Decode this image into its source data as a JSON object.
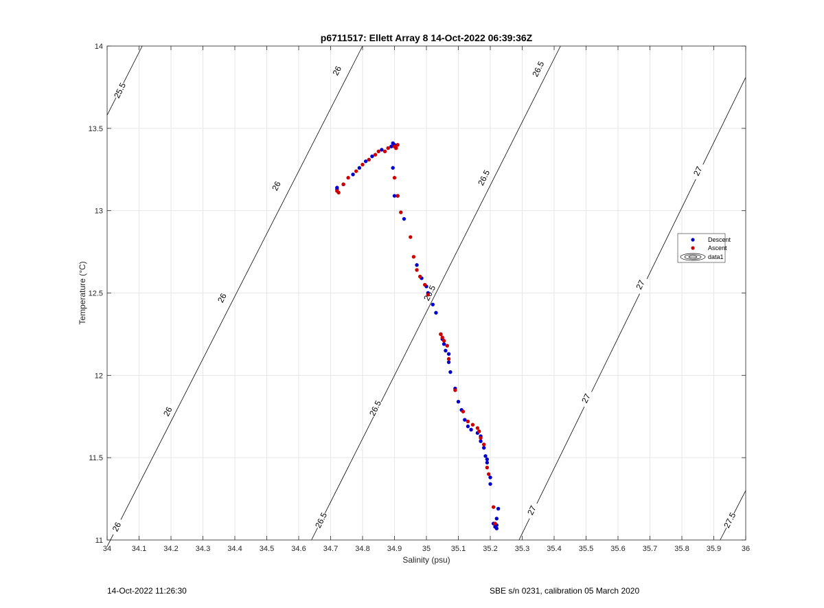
{
  "chart_data": {
    "type": "scatter",
    "title": "p6711517: Ellett Array 8 14-Oct-2022 06:39:36Z",
    "xlabel": "Salinity (psu)",
    "ylabel": "Temperature (°C)",
    "xlim": [
      34,
      36
    ],
    "ylim": [
      11,
      14
    ],
    "xticks": [
      34,
      34.1,
      34.2,
      34.3,
      34.4,
      34.5,
      34.6,
      34.7,
      34.8,
      34.9,
      35,
      35.1,
      35.2,
      35.3,
      35.4,
      35.5,
      35.6,
      35.7,
      35.8,
      35.9,
      36
    ],
    "xtick_labels": [
      "34",
      "34.1",
      "34.2",
      "34.3",
      "34.4",
      "34.5",
      "34.6",
      "34.7",
      "34.8",
      "34.9",
      "35",
      "35.1",
      "35.2",
      "35.3",
      "35.4",
      "35.5",
      "35.6",
      "35.7",
      "35.8",
      "35.9",
      "36"
    ],
    "yticks": [
      11,
      11.5,
      12,
      12.5,
      13,
      13.5,
      14
    ],
    "ytick_labels": [
      "11",
      "11.5",
      "12",
      "12.5",
      "13",
      "13.5",
      "14"
    ],
    "grid": true,
    "legend_position": "right",
    "legend": [
      "Descent",
      "Ascent",
      "data1"
    ],
    "colors": {
      "descent": "#0000cc",
      "ascent": "#cc0000",
      "contour": "#000000",
      "grid": "#e6e6e6"
    },
    "contours": [
      {
        "level": "25.5",
        "start": [
          34,
          13.58
        ],
        "end": [
          34.11,
          14
        ],
        "labels": [
          [
            34.04,
            13.73
          ]
        ]
      },
      {
        "level": "26",
        "start": [
          34,
          10.96
        ],
        "end": [
          34.8,
          14
        ],
        "labels": [
          [
            34.03,
            11.08
          ],
          [
            34.19,
            11.78
          ],
          [
            34.36,
            12.47
          ],
          [
            34.53,
            13.15
          ],
          [
            34.72,
            13.85
          ]
        ]
      },
      {
        "level": "26.5",
        "start": [
          34.64,
          11
        ],
        "end": [
          35.42,
          14
        ],
        "labels": [
          [
            34.67,
            11.12
          ],
          [
            34.84,
            11.8
          ],
          [
            35.01,
            12.5
          ],
          [
            35.18,
            13.2
          ],
          [
            35.35,
            13.86
          ]
        ]
      },
      {
        "level": "27",
        "start": [
          35.29,
          11
        ],
        "end": [
          36,
          13.81
        ],
        "labels": [
          [
            35.33,
            11.18
          ],
          [
            35.5,
            11.86
          ],
          [
            35.67,
            12.55
          ],
          [
            35.85,
            13.24
          ]
        ]
      },
      {
        "level": "27.5",
        "start": [
          35.92,
          11
        ],
        "end": [
          36,
          11.3
        ],
        "labels": [
          [
            35.95,
            11.12
          ]
        ]
      }
    ],
    "series": [
      {
        "name": "Descent",
        "x": [
          34.72,
          34.72,
          34.74,
          34.77,
          34.79,
          34.81,
          34.83,
          34.86,
          34.89,
          34.895,
          34.9,
          34.895,
          34.9,
          34.91,
          34.93,
          34.97,
          34.985,
          35.0,
          35.005,
          35.02,
          35.03,
          35.045,
          35.05,
          35.055,
          35.06,
          35.07,
          35.07,
          35.075,
          35.09,
          35.1,
          35.11,
          35.12,
          35.13,
          35.14,
          35.16,
          35.17,
          35.17,
          35.18,
          35.185,
          35.19,
          35.19,
          35.2,
          35.2,
          35.21,
          35.215,
          35.22,
          35.22,
          35.22,
          35.225
        ],
        "y": [
          13.14,
          13.13,
          13.16,
          13.22,
          13.26,
          13.3,
          13.33,
          13.37,
          13.39,
          13.41,
          13.4,
          13.26,
          13.09,
          13.09,
          12.95,
          12.67,
          12.59,
          12.54,
          12.5,
          12.43,
          12.38,
          12.25,
          12.22,
          12.19,
          12.15,
          12.13,
          12.08,
          12.02,
          11.92,
          11.84,
          11.79,
          11.73,
          11.69,
          11.67,
          11.65,
          11.63,
          11.6,
          11.56,
          11.51,
          11.49,
          11.47,
          11.38,
          11.34,
          11.1,
          11.08,
          11.07,
          11.09,
          11.13,
          11.19
        ]
      },
      {
        "name": "Ascent",
        "x": [
          34.72,
          34.725,
          34.74,
          34.755,
          34.78,
          34.8,
          34.82,
          34.84,
          34.85,
          34.87,
          34.88,
          34.9,
          34.905,
          34.91,
          34.905,
          34.9,
          34.91,
          34.92,
          34.95,
          34.96,
          34.97,
          34.98,
          34.995,
          35.005,
          35.045,
          35.05,
          35.055,
          35.065,
          35.07,
          35.09,
          35.115,
          35.13,
          35.145,
          35.16,
          35.165,
          35.17,
          35.18,
          35.19,
          35.195,
          35.21,
          35.215
        ],
        "y": [
          13.12,
          13.11,
          13.16,
          13.2,
          13.24,
          13.28,
          13.31,
          13.34,
          13.36,
          13.36,
          13.38,
          13.39,
          13.38,
          13.4,
          13.38,
          13.2,
          13.09,
          12.99,
          12.84,
          12.72,
          12.64,
          12.6,
          12.55,
          12.49,
          12.25,
          12.23,
          12.21,
          12.18,
          12.1,
          11.91,
          11.78,
          11.72,
          11.7,
          11.68,
          11.66,
          11.62,
          11.58,
          11.44,
          11.4,
          11.2,
          11.1
        ]
      }
    ]
  },
  "footer": {
    "timestamp": "14-Oct-2022 11:26:30",
    "instrument": "SBE s/n 0231, calibration 05 March 2020"
  }
}
